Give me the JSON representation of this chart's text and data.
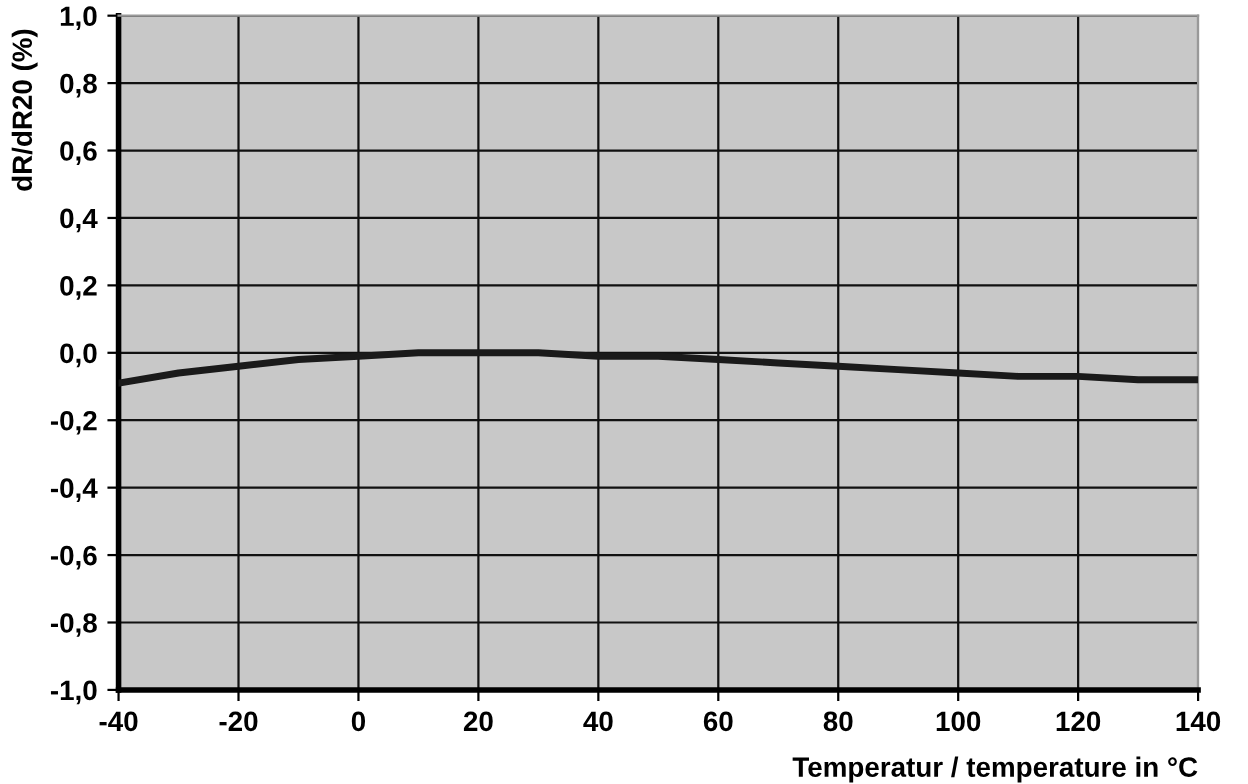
{
  "chart_data": {
    "type": "line",
    "xlabel": "Temperatur / temperature in °C",
    "ylabel": "dR/dR20 (%)",
    "x": [
      -40,
      -30,
      -20,
      -10,
      0,
      10,
      20,
      30,
      40,
      50,
      60,
      70,
      80,
      90,
      100,
      110,
      120,
      130,
      140
    ],
    "series": [
      {
        "color": "#1a1a1a",
        "values": [
          -0.09,
          -0.06,
          -0.04,
          -0.02,
          -0.01,
          0,
          0,
          0,
          -0.01,
          -0.01,
          -0.02,
          -0.03,
          -0.04,
          -0.05,
          -0.06,
          -0.07,
          -0.07,
          -0.08,
          -0.08
        ]
      }
    ],
    "xlim": [
      -40,
      140
    ],
    "xticks": [
      -40,
      -20,
      0,
      20,
      40,
      60,
      80,
      100,
      120,
      140
    ],
    "ylim": [
      -1.0,
      1.0
    ],
    "yticks": [
      {
        "value": -1.0,
        "label": "-1,0"
      },
      {
        "value": -0.8,
        "label": "-0,8"
      },
      {
        "value": -0.6,
        "label": "-0,6"
      },
      {
        "value": -0.4,
        "label": "-0,4"
      },
      {
        "value": -0.2,
        "label": "-0,2"
      },
      {
        "value": 0.0,
        "label": "0,0"
      },
      {
        "value": 0.2,
        "label": "0,2"
      },
      {
        "value": 0.4,
        "label": "0,4"
      },
      {
        "value": 0.6,
        "label": "0,6"
      },
      {
        "value": 0.8,
        "label": "0,8"
      },
      {
        "value": 1.0,
        "label": "1,0"
      }
    ],
    "grid": true,
    "marker": "none",
    "line_style": "solid"
  }
}
